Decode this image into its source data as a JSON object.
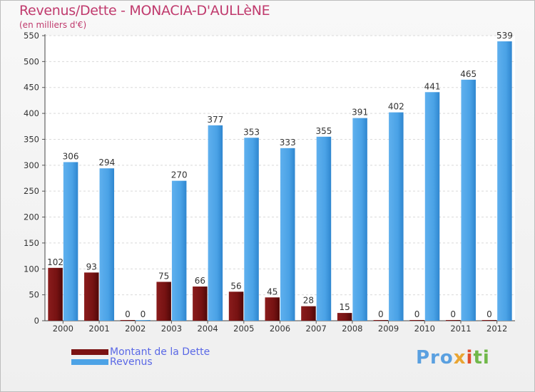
{
  "title": "Revenus/Dette - MONACIA-D'AULLèNE",
  "subtitle": "(en milliers d'€)",
  "logo_text": "Proxiti",
  "colors": {
    "dette": "#7a1212",
    "revenus": "#4da3e6",
    "title": "#c03a6d",
    "legend_text": "#5a68e6"
  },
  "chart_data": {
    "type": "bar",
    "categories": [
      "2000",
      "2001",
      "2002",
      "2003",
      "2004",
      "2005",
      "2006",
      "2007",
      "2008",
      "2009",
      "2010",
      "2011",
      "2012"
    ],
    "series": [
      {
        "name": "Montant de la Dette",
        "values": [
          102,
          93,
          0,
          75,
          66,
          56,
          45,
          28,
          15,
          0,
          0,
          0,
          0
        ]
      },
      {
        "name": "Revenus",
        "values": [
          306,
          294,
          0,
          270,
          377,
          353,
          333,
          355,
          391,
          402,
          441,
          465,
          539
        ]
      }
    ],
    "ylim": [
      0,
      550
    ],
    "yticks": [
      0,
      50,
      100,
      150,
      200,
      250,
      300,
      350,
      400,
      450,
      500,
      550
    ],
    "grid": true,
    "legend": "bottom-left"
  }
}
